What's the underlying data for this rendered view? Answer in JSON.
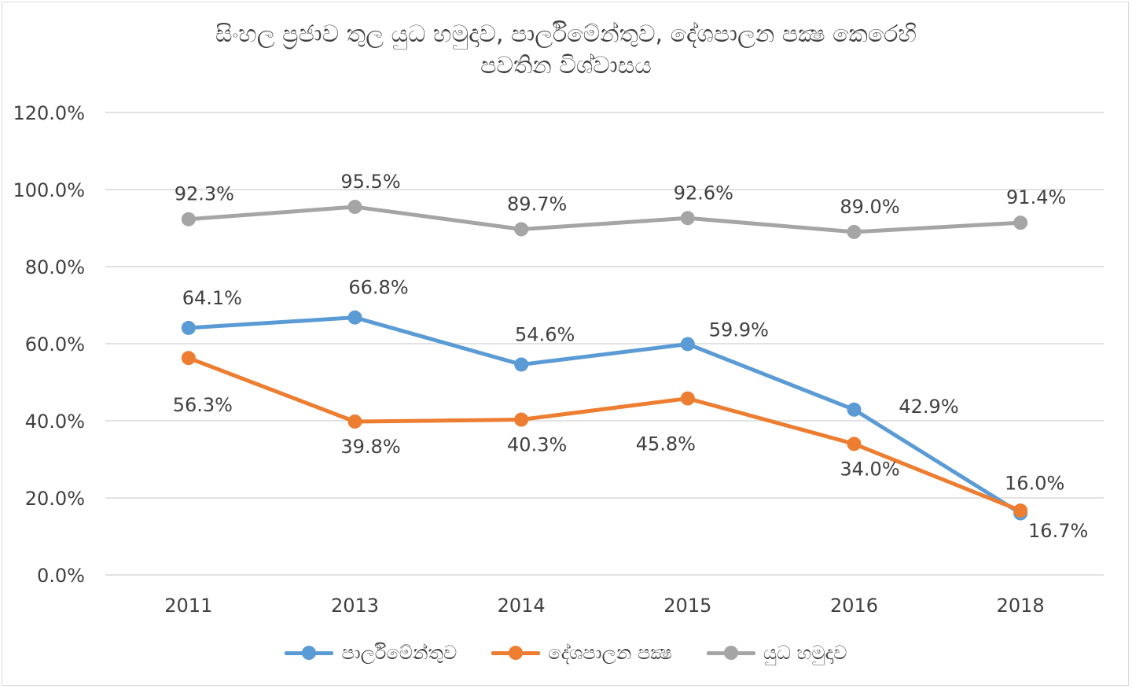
{
  "chart_data": {
    "type": "line",
    "title_line1": "සිංහල ප්‍රජාව තුල යුධ හමුදාව, පාර්ලිමේන්තුව, දේශපාලන පක්‍ෂ කෙරෙහි",
    "title_line2": "පවතින විශ්වාසය",
    "categories": [
      "2011",
      "2013",
      "2014",
      "2015",
      "2016",
      "2018"
    ],
    "ylim": [
      0,
      120
    ],
    "yticks": [
      0,
      20,
      40,
      60,
      80,
      100,
      120
    ],
    "ytick_labels": [
      "0.0%",
      "20.0%",
      "40.0%",
      "60.0%",
      "80.0%",
      "100.0%",
      "120.0%"
    ],
    "grid": true,
    "legend_position": "bottom",
    "series": [
      {
        "name": "පාර්ලිමේන්තුව",
        "color": "#5b9bd5",
        "values": [
          64.1,
          66.8,
          54.6,
          59.9,
          42.9,
          16.0
        ],
        "labels": [
          "64.1%",
          "66.8%",
          "54.6%",
          "59.9%",
          "42.9%",
          "16.0%"
        ]
      },
      {
        "name": "දේශපාලන පක්‍ෂ",
        "color": "#ed7d31",
        "values": [
          56.3,
          39.8,
          40.3,
          45.8,
          34.0,
          16.7
        ],
        "labels": [
          "56.3%",
          "39.8%",
          "40.3%",
          "45.8%",
          "34.0%",
          "16.7%"
        ]
      },
      {
        "name": "යුධ හමුදාව",
        "color": "#a5a5a5",
        "values": [
          92.3,
          95.5,
          89.7,
          92.6,
          89.0,
          91.4
        ],
        "labels": [
          "92.3%",
          "95.5%",
          "89.7%",
          "92.6%",
          "89.0%",
          "91.4%"
        ]
      }
    ]
  }
}
